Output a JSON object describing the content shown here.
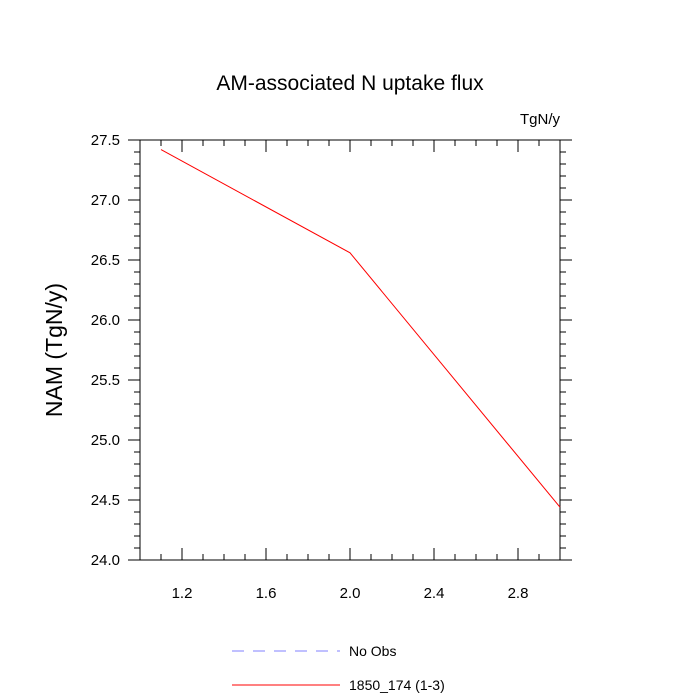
{
  "chart_data": {
    "type": "line",
    "title": "AM-associated N uptake flux",
    "units_label": "TgN/y",
    "xlabel": "",
    "ylabel": "NAM  (TgN/y)",
    "xlim": [
      1.0,
      3.0
    ],
    "ylim": [
      24.0,
      27.5
    ],
    "x_ticks": [
      1.2,
      1.6,
      2.0,
      2.4,
      2.8
    ],
    "x_tick_labels": [
      "1.2",
      "1.6",
      "2.0",
      "2.4",
      "2.8"
    ],
    "y_ticks": [
      24.0,
      24.5,
      25.0,
      25.5,
      26.0,
      26.5,
      27.0,
      27.5
    ],
    "y_tick_labels": [
      "24.0",
      "24.5",
      "25.0",
      "25.5",
      "26.0",
      "26.5",
      "27.0",
      "27.5"
    ],
    "series": [
      {
        "name": "No Obs",
        "color": "#8080ff",
        "dash": "dashed",
        "x": [],
        "y": []
      },
      {
        "name": "1850_174 (1-3)",
        "color": "#ff0000",
        "dash": "solid",
        "x": [
          1.1,
          2.0,
          3.0
        ],
        "y": [
          27.42,
          26.56,
          24.44
        ]
      }
    ],
    "legend": [
      "No Obs",
      "1850_174 (1-3)"
    ],
    "legend_position": "bottom"
  }
}
